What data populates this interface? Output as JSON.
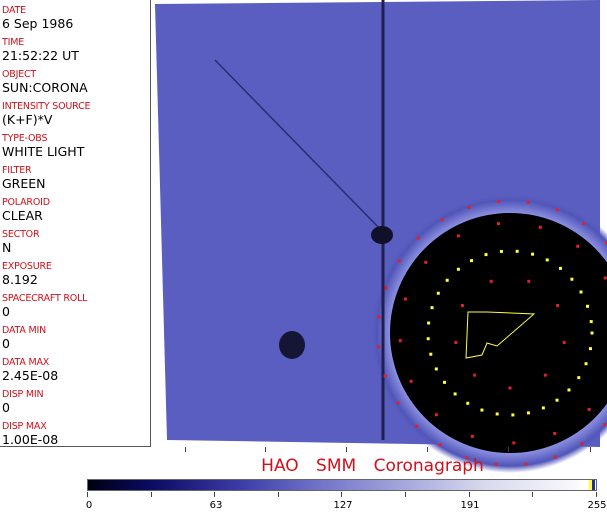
{
  "header_fields": [
    {
      "label": "DATE",
      "value": "6 Sep 1986"
    },
    {
      "label": "TIME",
      "value": "21:52:22 UT"
    },
    {
      "label": "OBJECT",
      "value": "SUN:CORONA"
    },
    {
      "label": "INTENSITY SOURCE",
      "value": "(K+F)*V"
    },
    {
      "label": "TYPE-OBS",
      "value": "WHITE LIGHT"
    },
    {
      "label": "FILTER",
      "value": "GREEN"
    },
    {
      "label": "POLAROID",
      "value": "CLEAR"
    },
    {
      "label": "SECTOR",
      "value": "N"
    },
    {
      "label": "EXPOSURE",
      "value": "8.192"
    },
    {
      "label": "SPACECRAFT ROLL",
      "value": "0"
    },
    {
      "label": "DATA MIN",
      "value": "0"
    },
    {
      "label": "DATA MAX",
      "value": "2.45E-08"
    },
    {
      "label": "DISP MIN",
      "value": "0"
    },
    {
      "label": "DISP MAX",
      "value": "1.00E-08"
    }
  ],
  "title": "HAO SMM Coronagraph",
  "colorbar": {
    "tick_labels": [
      "0",
      "63",
      "127",
      "191",
      "255"
    ],
    "colors": {
      "low": "#000010",
      "mid": "#6f72c8",
      "high": "#ffffff"
    }
  },
  "colors": {
    "label": "#d0101c",
    "image_blue": "#5a5ec0",
    "overlay_yellow": "#ffff40",
    "overlay_red": "#e0202a"
  }
}
